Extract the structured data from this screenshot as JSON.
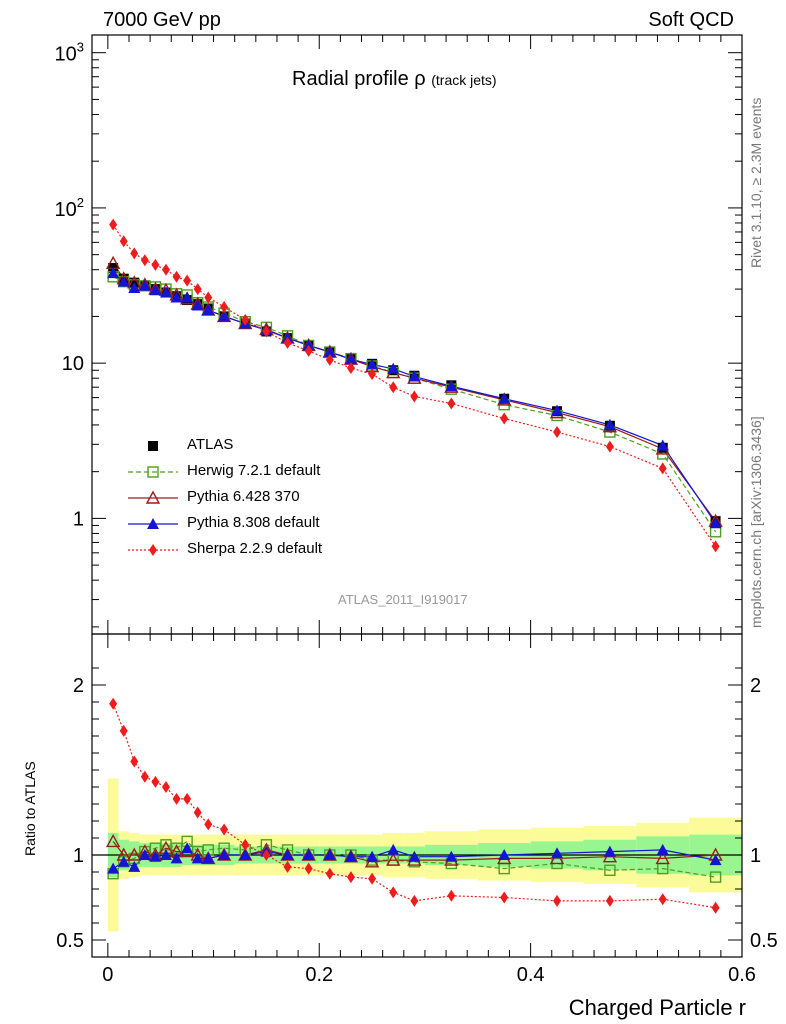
{
  "header": {
    "left": "7000 GeV pp",
    "right": "Soft QCD"
  },
  "side_labels": {
    "rivet": "Rivet 3.1.10, ≥ 2.3M events",
    "mcplots": "mcplots.cern.ch [arXiv:1306.3436]"
  },
  "analysis_id": "ATLAS_2011_I919017",
  "chart_data": [
    {
      "type": "scatter",
      "title": "Radial profile ρ",
      "title_sub": "(track jets)",
      "xlabel": "Charged Particle r",
      "ylabel": "",
      "yscale": "log",
      "xlim": [
        -0.015,
        0.6
      ],
      "ylim": [
        0.18,
        1300
      ],
      "yticks": [
        {
          "value": 1,
          "label": "1"
        },
        {
          "value": 10,
          "label": "10"
        },
        {
          "value": 100,
          "label": "10²"
        },
        {
          "value": 1000,
          "label": "10³"
        }
      ],
      "x": [
        0.005,
        0.015,
        0.025,
        0.035,
        0.045,
        0.055,
        0.065,
        0.075,
        0.085,
        0.095,
        0.11,
        0.13,
        0.15,
        0.17,
        0.19,
        0.21,
        0.23,
        0.25,
        0.27,
        0.29,
        0.325,
        0.375,
        0.425,
        0.475,
        0.525,
        0.575
      ],
      "series": [
        {
          "name": "ATLAS",
          "color": "#000000",
          "marker": "square-filled",
          "line": "none",
          "values": [
            41,
            35,
            33,
            31.5,
            30,
            28.5,
            27,
            25.5,
            24,
            22.5,
            20,
            18,
            16,
            14.5,
            13,
            11.8,
            10.7,
            9.9,
            9.0,
            8.3,
            7.2,
            5.9,
            4.9,
            3.95,
            2.85,
            0.96
          ]
        },
        {
          "name": "Herwig 7.2.1 default",
          "color": "#4f9f1f",
          "marker": "square-open",
          "line": "dashed",
          "values": [
            36,
            33.5,
            32,
            31.5,
            31,
            30,
            28,
            27.5,
            24.5,
            23,
            21,
            18.5,
            17,
            15,
            13,
            11.8,
            10.7,
            9.6,
            8.7,
            8.0,
            6.8,
            5.4,
            4.6,
            3.6,
            2.6,
            0.82
          ]
        },
        {
          "name": "Pythia 6.428 370",
          "color": "#9b1c1c",
          "marker": "triangle-open",
          "line": "solid",
          "values": [
            44,
            35,
            33,
            32,
            30,
            29.5,
            27.5,
            26,
            24,
            22,
            20,
            18,
            16.5,
            14.5,
            13,
            11.8,
            10.6,
            9.5,
            8.7,
            8.0,
            7.0,
            5.8,
            4.8,
            3.9,
            2.8,
            0.96
          ]
        },
        {
          "name": "Pythia 8.308 default",
          "color": "#1414d2",
          "marker": "triangle-filled",
          "line": "solid",
          "values": [
            38,
            33.5,
            30.5,
            31.5,
            29.5,
            28.5,
            26.5,
            26.5,
            23.5,
            22,
            20,
            18,
            16.3,
            14.5,
            13,
            11.8,
            10.6,
            9.8,
            9.2,
            8.2,
            7.1,
            5.9,
            4.95,
            4.0,
            2.95,
            0.93
          ]
        },
        {
          "name": "Sherpa 2.2.9 default",
          "color": "#ee1c1c",
          "marker": "diamond-filled",
          "line": "dotted",
          "values": [
            78,
            61,
            51,
            46,
            43,
            40,
            36,
            34,
            30,
            26.5,
            23,
            19,
            16,
            13.5,
            12,
            10.5,
            9.3,
            8.5,
            7.0,
            6.1,
            5.5,
            4.4,
            3.6,
            2.9,
            2.1,
            0.66
          ]
        }
      ]
    },
    {
      "type": "scatter",
      "title": "",
      "xlabel": "Charged Particle r",
      "ylabel": "Ratio to ATLAS",
      "xlim": [
        -0.015,
        0.6
      ],
      "ylim": [
        0.4,
        2.3
      ],
      "xticks": [
        {
          "value": 0,
          "label": "0"
        },
        {
          "value": 0.2,
          "label": "0.2"
        },
        {
          "value": 0.4,
          "label": "0.4"
        },
        {
          "value": 0.6,
          "label": "0.6"
        }
      ],
      "yticks": [
        {
          "value": 0.5,
          "label": "0.5"
        },
        {
          "value": 1,
          "label": "1"
        },
        {
          "value": 2,
          "label": "2"
        }
      ],
      "reference_line": 1,
      "bands": {
        "edges": [
          0,
          0.01,
          0.02,
          0.03,
          0.04,
          0.05,
          0.06,
          0.07,
          0.08,
          0.09,
          0.1,
          0.12,
          0.14,
          0.16,
          0.18,
          0.2,
          0.22,
          0.24,
          0.26,
          0.28,
          0.3,
          0.35,
          0.4,
          0.45,
          0.5,
          0.55,
          0.6
        ],
        "stat_green": [
          0.13,
          0.09,
          0.08,
          0.07,
          0.07,
          0.07,
          0.07,
          0.06,
          0.06,
          0.06,
          0.06,
          0.05,
          0.05,
          0.05,
          0.05,
          0.05,
          0.05,
          0.05,
          0.05,
          0.05,
          0.06,
          0.07,
          0.08,
          0.09,
          0.11,
          0.12
        ],
        "total_yellow": [
          0.45,
          0.14,
          0.13,
          0.12,
          0.12,
          0.12,
          0.12,
          0.12,
          0.12,
          0.12,
          0.12,
          0.12,
          0.12,
          0.12,
          0.12,
          0.12,
          0.12,
          0.12,
          0.13,
          0.13,
          0.14,
          0.15,
          0.16,
          0.17,
          0.19,
          0.22
        ]
      },
      "x": [
        0.005,
        0.015,
        0.025,
        0.035,
        0.045,
        0.055,
        0.065,
        0.075,
        0.085,
        0.095,
        0.11,
        0.13,
        0.15,
        0.17,
        0.19,
        0.21,
        0.23,
        0.25,
        0.27,
        0.29,
        0.325,
        0.375,
        0.425,
        0.475,
        0.525,
        0.575
      ],
      "series": [
        {
          "name": "Herwig 7.2.1 default",
          "values": [
            0.89,
            0.96,
            0.98,
            1.02,
            1.04,
            1.06,
            1.04,
            1.08,
            1.02,
            1.03,
            1.04,
            1.03,
            1.06,
            1.03,
            1.0,
            1.0,
            1.0,
            0.97,
            0.97,
            0.96,
            0.95,
            0.92,
            0.95,
            0.91,
            0.92,
            0.87
          ]
        },
        {
          "name": "Pythia 6.428 370",
          "values": [
            1.08,
            1.0,
            1.0,
            1.02,
            1.0,
            1.04,
            1.02,
            1.02,
            1.0,
            0.98,
            1.0,
            1.0,
            1.03,
            1.0,
            1.0,
            1.0,
            0.99,
            0.96,
            0.97,
            0.97,
            0.97,
            0.98,
            0.98,
            0.99,
            0.98,
            1.0
          ]
        },
        {
          "name": "Pythia 8.308 default",
          "values": [
            0.92,
            0.96,
            0.93,
            1.0,
            0.99,
            1.0,
            0.98,
            1.04,
            0.98,
            0.98,
            1.0,
            1.0,
            1.02,
            1.0,
            1.0,
            1.0,
            0.99,
            0.99,
            1.03,
            0.99,
            0.99,
            1.0,
            1.01,
            1.02,
            1.03,
            0.97
          ]
        },
        {
          "name": "Sherpa 2.2.9 default",
          "values": [
            1.89,
            1.73,
            1.55,
            1.46,
            1.43,
            1.4,
            1.33,
            1.33,
            1.25,
            1.18,
            1.15,
            1.06,
            1.0,
            0.93,
            0.92,
            0.89,
            0.87,
            0.86,
            0.78,
            0.73,
            0.76,
            0.75,
            0.73,
            0.73,
            0.74,
            0.69
          ]
        }
      ]
    }
  ]
}
